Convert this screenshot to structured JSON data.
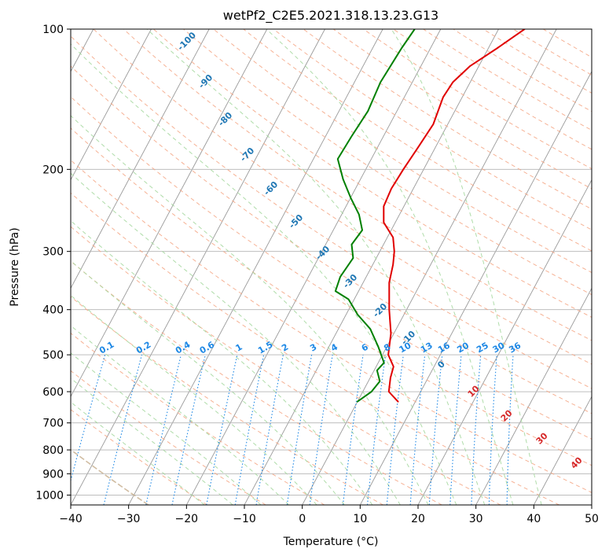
{
  "chart_data": {
    "type": "line",
    "title": "wetPf2_C2E5.2021.318.13.23.G13",
    "xlabel": "Temperature (°C)",
    "ylabel": "Pressure (hPa)",
    "xlim": [
      -40,
      50
    ],
    "ylim": [
      1050,
      100
    ],
    "y_scale": "log",
    "grid": true,
    "x_ticks": [
      -40,
      -30,
      -20,
      -10,
      0,
      10,
      20,
      30,
      40,
      50
    ],
    "x_tick_labels": [
      "−40",
      "−30",
      "−20",
      "−10",
      "0",
      "10",
      "20",
      "30",
      "40",
      "50"
    ],
    "y_ticks": [
      100,
      200,
      300,
      400,
      500,
      600,
      700,
      800,
      900,
      1000
    ],
    "y_tick_labels": [
      "100",
      "200",
      "300",
      "400",
      "500",
      "600",
      "700",
      "800",
      "900",
      "1000"
    ],
    "skew_per_decade": 43,
    "series": [
      {
        "color": "#e00000",
        "p": [
          630,
          600,
          560,
          530,
          500,
          450,
          400,
          350,
          320,
          300,
          280,
          260,
          240,
          220,
          200,
          180,
          160,
          140,
          130,
          120,
          110,
          100
        ],
        "t": [
          7.0,
          4.5,
          3.5,
          3.0,
          1.0,
          -0.5,
          -3.0,
          -5.5,
          -6.5,
          -7.5,
          -9.0,
          -12.0,
          -13.5,
          -13.8,
          -13.5,
          -13.0,
          -12.5,
          -13.3,
          -13.0,
          -11.5,
          -8.5,
          -5.5
        ]
      },
      {
        "color": "#008000",
        "p": [
          630,
          600,
          570,
          540,
          520,
          480,
          440,
          410,
          380,
          365,
          340,
          310,
          290,
          270,
          250,
          230,
          210,
          190,
          170,
          150,
          130,
          110,
          100
        ],
        "t": [
          0.0,
          1.5,
          2.0,
          0.5,
          1.0,
          -1.5,
          -4.5,
          -8.0,
          -11.0,
          -14.0,
          -14.5,
          -14.0,
          -15.5,
          -15.0,
          -17.0,
          -20.0,
          -23.0,
          -25.8,
          -25.5,
          -25.0,
          -25.5,
          -25.0,
          -24.5
        ]
      }
    ],
    "dry_adiabat_labels": [
      "-100",
      "-90",
      "-80",
      "-70",
      "-60",
      "-50",
      "-40",
      "-30",
      "-20",
      "-10",
      "0"
    ],
    "dry_adiabat_label_values": [
      -100,
      -90,
      -80,
      -70,
      -60,
      -50,
      -40,
      -30,
      -20,
      -10,
      0
    ],
    "moist_adiabat_labels": [
      "10",
      "20",
      "30",
      "40"
    ],
    "moist_adiabat_label_values": [
      10,
      20,
      30,
      40
    ],
    "mixing_ratio_labels": [
      "0.1",
      "0.2",
      "0.4",
      "0.6",
      "1",
      "1.5",
      "2",
      "3",
      "4",
      "6",
      "8",
      "10",
      "13",
      "16",
      "20",
      "25",
      "30",
      "36"
    ],
    "mixing_ratio_values": [
      0.1,
      0.2,
      0.4,
      0.6,
      1,
      1.5,
      2,
      3,
      4,
      6,
      8,
      10,
      13,
      16,
      20,
      25,
      30,
      36
    ],
    "colors": {
      "isotherm": "#9a9a9a",
      "isobar": "#b4b4b4",
      "dry_adiabat": "#f4a582",
      "moist_adiabat": "#a6d8a0",
      "mixing_ratio": "#1e88e5",
      "mixing_label": "#1e88e5",
      "dry_label": "#1f77b4",
      "moist_label": "#d62728",
      "zero_label": "#808080",
      "curve_outer": "#c8b090"
    }
  }
}
